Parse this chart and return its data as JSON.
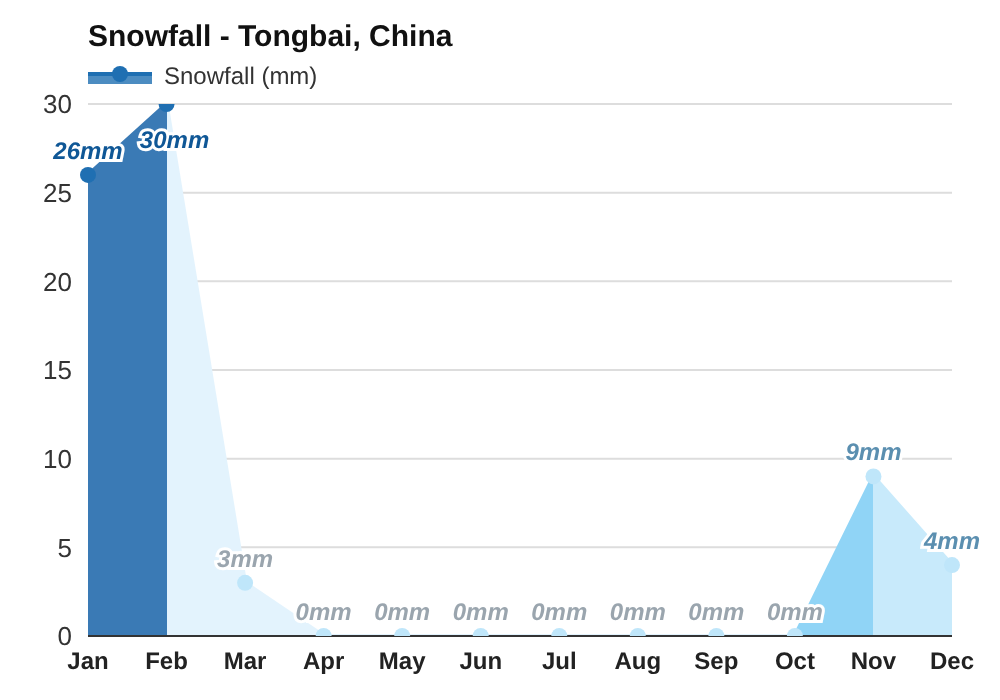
{
  "chart_data": {
    "type": "area",
    "title": "Snowfall - Tongbai, China",
    "categories": [
      "Jan",
      "Feb",
      "Mar",
      "Apr",
      "May",
      "Jun",
      "Jul",
      "Aug",
      "Sep",
      "Oct",
      "Nov",
      "Dec"
    ],
    "series": [
      {
        "name": "Snowfall (mm)",
        "color": "#1f6fb2",
        "colors": [
          "#3a7ab5",
          "#e3f3fd",
          "#e3f3fd",
          "#e3f3fd",
          "#e3f3fd",
          "#e3f3fd",
          "#e3f3fd",
          "#e3f3fd",
          "#e3f3fd",
          "#90d4f6",
          "#c8eafb",
          "#c8eafb"
        ],
        "values": [
          26,
          30,
          3,
          0,
          0,
          0,
          0,
          0,
          0,
          0,
          9,
          4
        ],
        "value_labels": [
          "26mm",
          "30mm",
          "3mm",
          "0mm",
          "0mm",
          "0mm",
          "0mm",
          "0mm",
          "0mm",
          "0mm",
          "9mm",
          "4mm"
        ]
      }
    ],
    "ylim": [
      0,
      30
    ],
    "yticks": [
      0,
      5,
      10,
      15,
      20,
      25,
      30
    ],
    "grid": "y",
    "legend": "top left",
    "marker": "circle"
  }
}
